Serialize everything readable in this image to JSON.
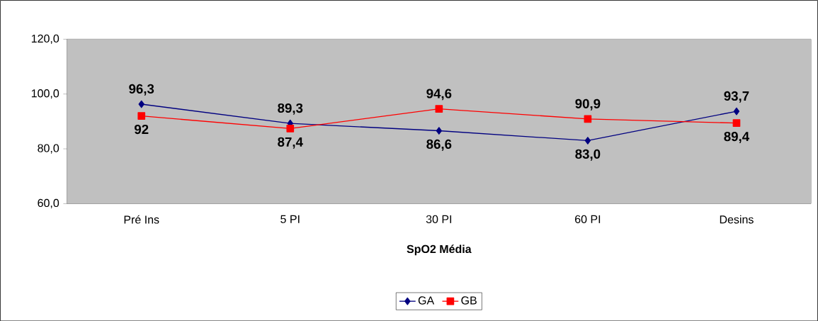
{
  "chart_data": {
    "type": "line",
    "xlabel": "SpO2 Média",
    "categories": [
      "Pré Ins",
      "5 PI",
      "30 PI",
      "60 PI",
      "Desins"
    ],
    "series": [
      {
        "name": "GA",
        "color": "#000080",
        "marker": "diamond",
        "values": [
          96.3,
          89.3,
          86.6,
          83.0,
          93.7
        ],
        "value_labels": [
          "96,3",
          "89,3",
          "86,6",
          "83,0",
          "93,7"
        ]
      },
      {
        "name": "GB",
        "color": "#ff0000",
        "marker": "square",
        "values": [
          92,
          87.4,
          94.6,
          90.9,
          89.4
        ],
        "value_labels": [
          "92",
          "87,4",
          "94,6",
          "90,9",
          "89,4"
        ]
      }
    ],
    "ylim": [
      60,
      120
    ],
    "yticks": [
      {
        "value": 60,
        "label": "60,0"
      },
      {
        "value": 80,
        "label": "80,0"
      },
      {
        "value": 100,
        "label": "100,0"
      },
      {
        "value": 120,
        "label": "120,0"
      }
    ],
    "grid": false,
    "legend": "bottom",
    "line_style": "solid"
  }
}
